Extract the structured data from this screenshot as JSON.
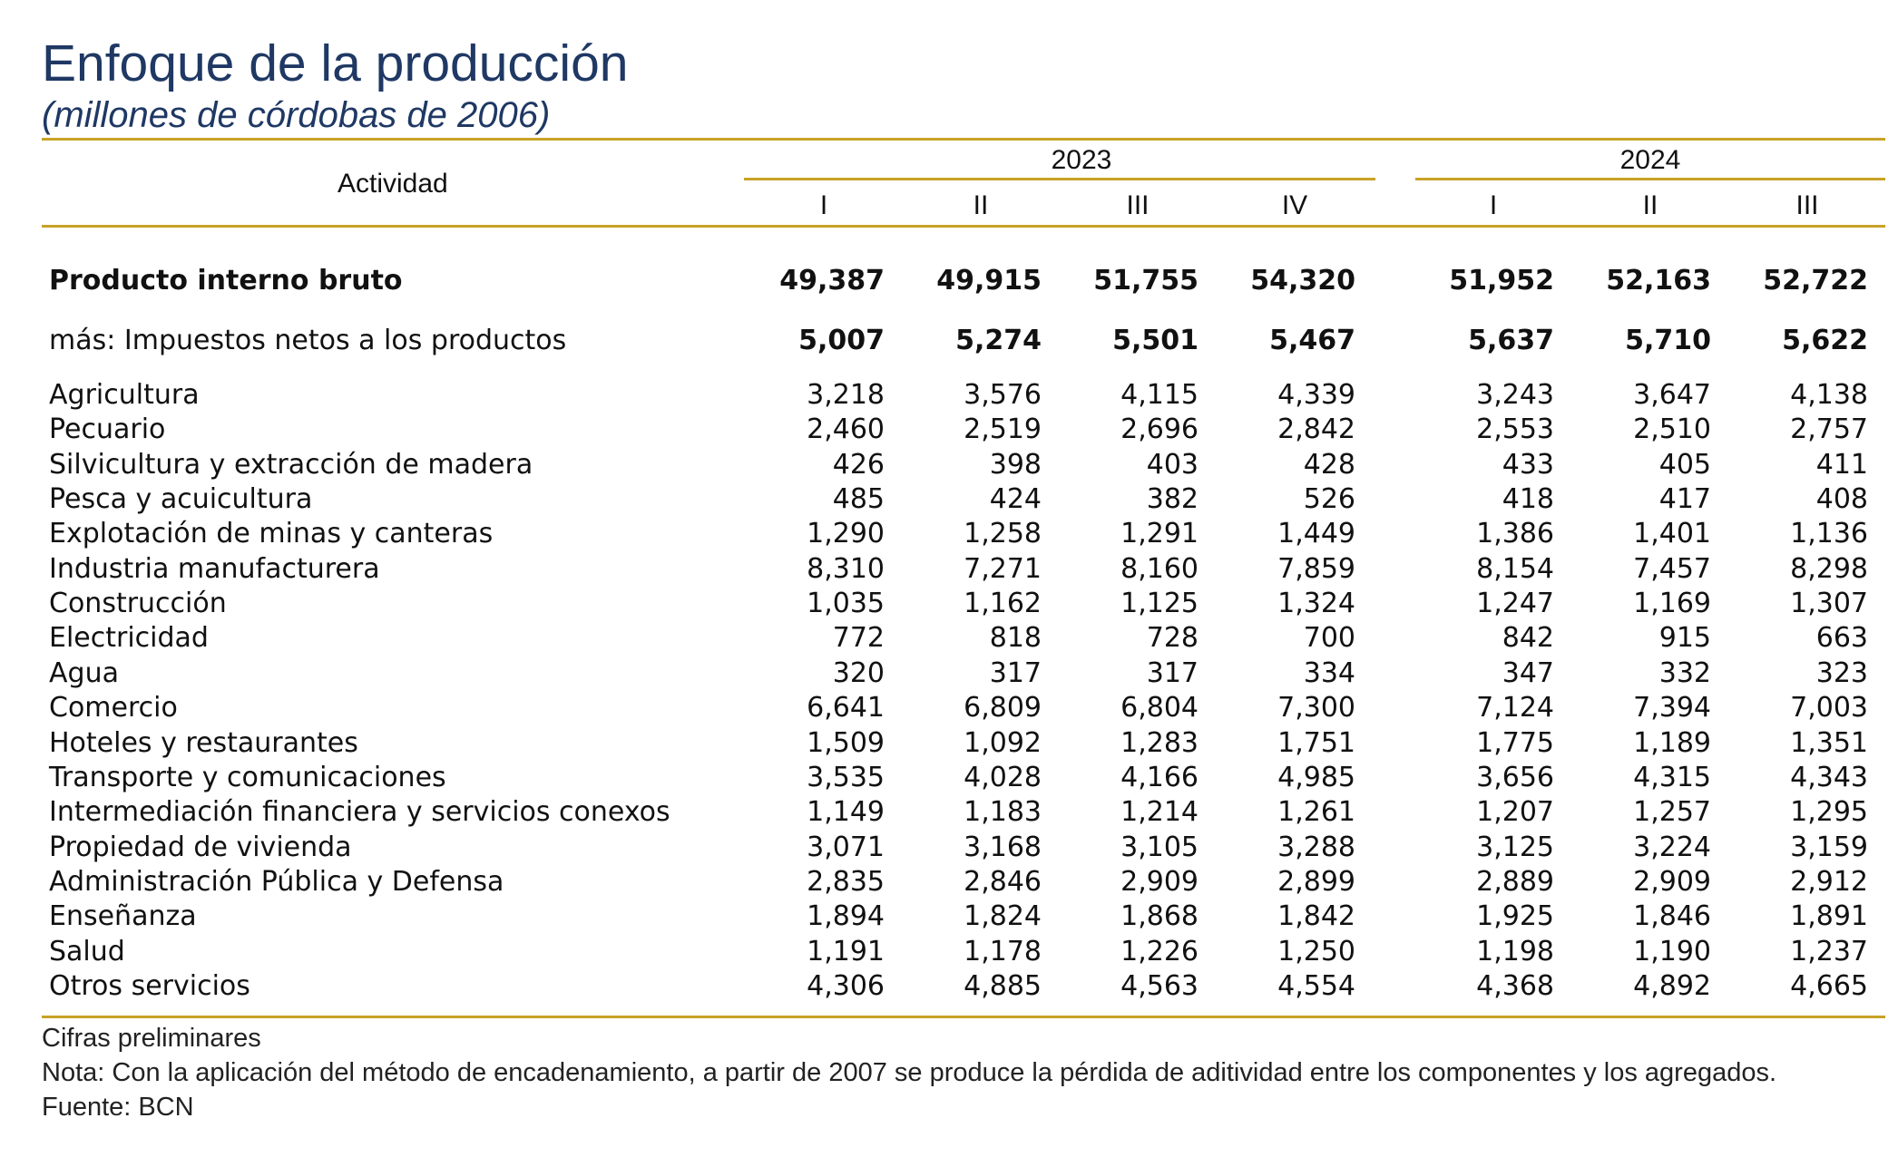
{
  "title": "Enfoque de la producción",
  "subtitle": "(millones de córdobas de 2006)",
  "header": {
    "activity_label": "Actividad",
    "years": [
      {
        "label": "2023",
        "quarters": [
          "I",
          "II",
          "III",
          "IV"
        ]
      },
      {
        "label": "2024",
        "quarters": [
          "I",
          "II",
          "III"
        ]
      }
    ]
  },
  "rows": [
    {
      "label": "Producto interno bruto",
      "bold": true,
      "values": [
        "49,387",
        "49,915",
        "51,755",
        "54,320",
        "51,952",
        "52,163",
        "52,722"
      ]
    },
    {
      "label": "más: Impuestos netos a los productos",
      "bold": false,
      "bold_values": true,
      "values": [
        "5,007",
        "5,274",
        "5,501",
        "5,467",
        "5,637",
        "5,710",
        "5,622"
      ]
    },
    {
      "label": "Agricultura",
      "values": [
        "3,218",
        "3,576",
        "4,115",
        "4,339",
        "3,243",
        "3,647",
        "4,138"
      ]
    },
    {
      "label": "Pecuario",
      "values": [
        "2,460",
        "2,519",
        "2,696",
        "2,842",
        "2,553",
        "2,510",
        "2,757"
      ]
    },
    {
      "label": "Silvicultura y extracción de madera",
      "values": [
        "426",
        "398",
        "403",
        "428",
        "433",
        "405",
        "411"
      ]
    },
    {
      "label": "Pesca y acuicultura",
      "values": [
        "485",
        "424",
        "382",
        "526",
        "418",
        "417",
        "408"
      ]
    },
    {
      "label": "Explotación de minas y canteras",
      "values": [
        "1,290",
        "1,258",
        "1,291",
        "1,449",
        "1,386",
        "1,401",
        "1,136"
      ]
    },
    {
      "label": "Industria manufacturera",
      "values": [
        "8,310",
        "7,271",
        "8,160",
        "7,859",
        "8,154",
        "7,457",
        "8,298"
      ]
    },
    {
      "label": "Construcción",
      "values": [
        "1,035",
        "1,162",
        "1,125",
        "1,324",
        "1,247",
        "1,169",
        "1,307"
      ]
    },
    {
      "label": "Electricidad",
      "values": [
        "772",
        "818",
        "728",
        "700",
        "842",
        "915",
        "663"
      ]
    },
    {
      "label": "Agua",
      "values": [
        "320",
        "317",
        "317",
        "334",
        "347",
        "332",
        "323"
      ]
    },
    {
      "label": "Comercio",
      "values": [
        "6,641",
        "6,809",
        "6,804",
        "7,300",
        "7,124",
        "7,394",
        "7,003"
      ]
    },
    {
      "label": "Hoteles y restaurantes",
      "values": [
        "1,509",
        "1,092",
        "1,283",
        "1,751",
        "1,775",
        "1,189",
        "1,351"
      ]
    },
    {
      "label": "Transporte y comunicaciones",
      "values": [
        "3,535",
        "4,028",
        "4,166",
        "4,985",
        "3,656",
        "4,315",
        "4,343"
      ]
    },
    {
      "label": "Intermediación financiera y servicios conexos",
      "values": [
        "1,149",
        "1,183",
        "1,214",
        "1,261",
        "1,207",
        "1,257",
        "1,295"
      ]
    },
    {
      "label": "Propiedad de vivienda",
      "values": [
        "3,071",
        "3,168",
        "3,105",
        "3,288",
        "3,125",
        "3,224",
        "3,159"
      ]
    },
    {
      "label": "Administración Pública y Defensa",
      "values": [
        "2,835",
        "2,846",
        "2,909",
        "2,899",
        "2,889",
        "2,909",
        "2,912"
      ]
    },
    {
      "label": "Enseñanza",
      "values": [
        "1,894",
        "1,824",
        "1,868",
        "1,842",
        "1,925",
        "1,846",
        "1,891"
      ]
    },
    {
      "label": "Salud",
      "values": [
        "1,191",
        "1,178",
        "1,226",
        "1,250",
        "1,198",
        "1,190",
        "1,237"
      ]
    },
    {
      "label": "Otros servicios",
      "values": [
        "4,306",
        "4,885",
        "4,563",
        "4,554",
        "4,368",
        "4,892",
        "4,665"
      ]
    }
  ],
  "notes": [
    "Cifras preliminares",
    "Nota: Con la aplicación del método de encadenamiento, a partir de 2007 se produce la pérdida de aditividad entre los componentes y los agregados.",
    "Fuente: BCN"
  ]
}
